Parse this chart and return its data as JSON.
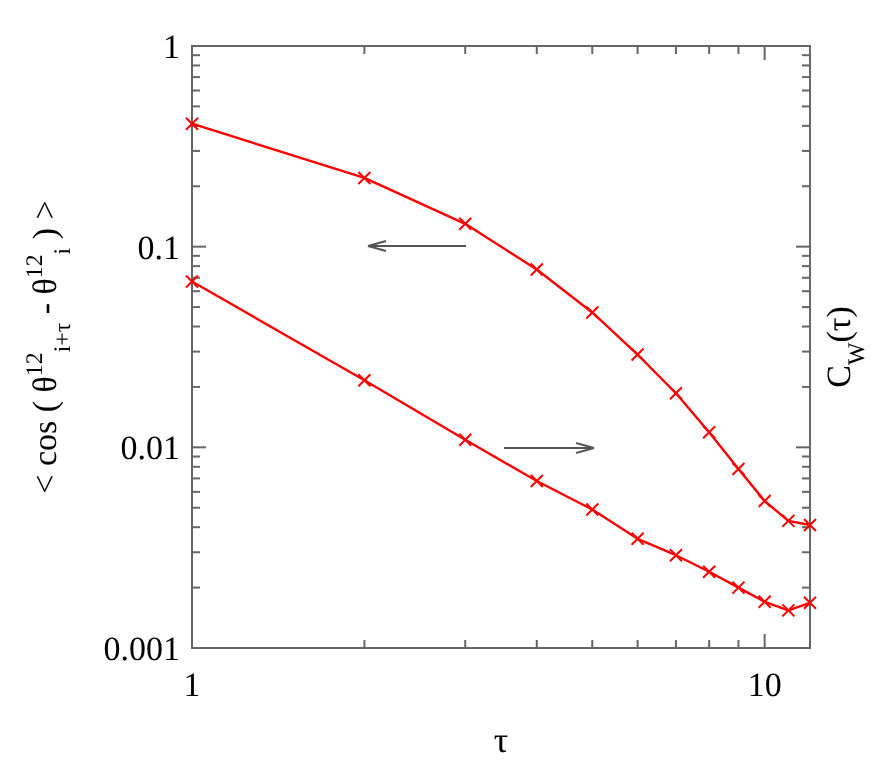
{
  "chart_data": {
    "type": "line",
    "xlabel": "τ",
    "ylabel": "< cos ( θ$^{12}$$_{i+τ}$ - θ$^{12}$$_{i}$ ) >",
    "y2label": "C$_{W}$(τ)",
    "log": "xy",
    "marker": "cross",
    "line_style": "solid",
    "grid": false,
    "x": [
      1,
      2,
      3,
      4,
      5,
      6,
      7,
      8,
      9,
      10,
      11,
      12
    ],
    "xlim": [
      1,
      12
    ],
    "xticks": [
      1,
      {
        "value": 2,
        "label": null
      },
      {
        "value": 3,
        "label": null
      },
      {
        "value": 4,
        "label": null
      },
      {
        "value": 5,
        "label": null
      },
      {
        "value": 6,
        "label": null
      },
      {
        "value": 7,
        "label": null
      },
      {
        "value": 8,
        "label": null
      },
      {
        "value": 9,
        "label": null
      },
      10
    ],
    "ylim": [
      0.001,
      1
    ],
    "yticks": [
      0.001,
      {
        "value": 0.002,
        "label": null
      },
      {
        "value": 0.003,
        "label": null
      },
      {
        "value": 0.004,
        "label": null
      },
      {
        "value": 0.005,
        "label": null
      },
      {
        "value": 0.006,
        "label": null
      },
      {
        "value": 0.007,
        "label": null
      },
      {
        "value": 0.008,
        "label": null
      },
      {
        "value": 0.009,
        "label": null
      },
      0.01,
      {
        "value": 0.02,
        "label": null
      },
      {
        "value": 0.03,
        "label": null
      },
      {
        "value": 0.04,
        "label": null
      },
      {
        "value": 0.05,
        "label": null
      },
      {
        "value": 0.06,
        "label": null
      },
      {
        "value": 0.07,
        "label": null
      },
      {
        "value": 0.08,
        "label": null
      },
      {
        "value": 0.09,
        "label": null
      },
      0.1,
      {
        "value": 0.2,
        "label": null
      },
      {
        "value": 0.3,
        "label": null
      },
      {
        "value": 0.4,
        "label": null
      },
      {
        "value": 0.5,
        "label": null
      },
      {
        "value": 0.6,
        "label": null
      },
      {
        "value": 0.7,
        "label": null
      },
      {
        "value": 0.8,
        "label": null
      },
      {
        "value": 0.9,
        "label": null
      },
      1
    ],
    "series": [
      {
        "color": "#ff0000",
        "values": [
          0.41,
          0.22,
          0.13,
          0.077,
          0.047,
          0.029,
          0.0186,
          0.0119,
          0.0078,
          0.0054,
          0.0043,
          0.0041
        ]
      },
      {
        "color": "#ff0000",
        "values": [
          0.067,
          0.0216,
          0.0109,
          0.0068,
          0.0049,
          0.0035,
          0.0029,
          0.0024,
          0.002,
          0.0017,
          0.00154,
          0.00168
        ]
      }
    ]
  }
}
